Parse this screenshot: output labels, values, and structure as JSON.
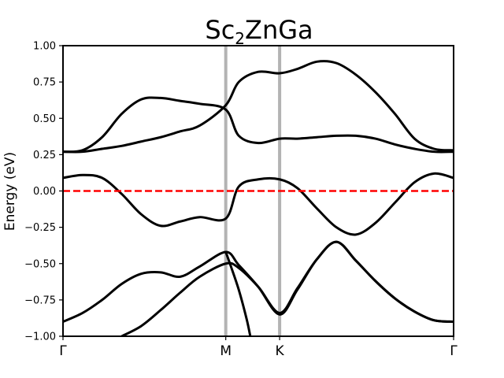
{
  "chart_data": {
    "type": "line",
    "title": {
      "main": "Sc",
      "subscript": "2",
      "rest": "ZnGa"
    },
    "ylabel": "Energy (eV)",
    "xlabel": "",
    "ylim": [
      -1.0,
      1.0
    ],
    "xlim": [
      0,
      1.0
    ],
    "yticks": [
      {
        "value": 1.0,
        "label": "1.00"
      },
      {
        "value": 0.75,
        "label": "0.75"
      },
      {
        "value": 0.5,
        "label": "0.50"
      },
      {
        "value": 0.25,
        "label": "0.25"
      },
      {
        "value": 0.0,
        "label": "0.00"
      },
      {
        "value": -0.25,
        "label": "−0.25"
      },
      {
        "value": -0.5,
        "label": "−0.50"
      },
      {
        "value": -0.75,
        "label": "−0.75"
      },
      {
        "value": -1.0,
        "label": "−1.00"
      }
    ],
    "kpoints": [
      {
        "label": "Γ",
        "x": 0.0
      },
      {
        "label": "M",
        "x": 0.4167
      },
      {
        "label": "K",
        "x": 0.5546
      },
      {
        "label": "Γ",
        "x": 1.0
      }
    ],
    "kpoint_line_color": "#b3b3b3",
    "fermi_level": 0.0,
    "fermi_color": "#ff0000",
    "band_color": "#000000",
    "grid": false,
    "series": [
      {
        "x": [
          0,
          0.05,
          0.1,
          0.15,
          0.2,
          0.25,
          0.3,
          0.35,
          0.4167,
          0.45,
          0.5,
          0.5546,
          0.6,
          0.65,
          0.7,
          0.75,
          0.8,
          0.85,
          0.9,
          0.95,
          1.0
        ],
        "values": [
          0.27,
          0.27,
          0.29,
          0.31,
          0.34,
          0.37,
          0.41,
          0.45,
          0.59,
          0.75,
          0.82,
          0.81,
          0.84,
          0.89,
          0.88,
          0.8,
          0.68,
          0.53,
          0.36,
          0.29,
          0.28
        ]
      },
      {
        "x": [
          0,
          0.05,
          0.1,
          0.15,
          0.2,
          0.25,
          0.3,
          0.35,
          0.4167,
          0.45,
          0.5,
          0.5546,
          0.6,
          0.65,
          0.7,
          0.75,
          0.8,
          0.85,
          0.9,
          0.95,
          1.0
        ],
        "values": [
          0.27,
          0.28,
          0.37,
          0.53,
          0.63,
          0.64,
          0.62,
          0.6,
          0.56,
          0.38,
          0.33,
          0.36,
          0.36,
          0.37,
          0.38,
          0.38,
          0.36,
          0.32,
          0.29,
          0.27,
          0.27
        ]
      },
      {
        "x": [
          0,
          0.05,
          0.1,
          0.15,
          0.2,
          0.25,
          0.3,
          0.35,
          0.4167,
          0.45,
          0.5,
          0.5546,
          0.6,
          0.65,
          0.7,
          0.75,
          0.8,
          0.85,
          0.9,
          0.95,
          1.0
        ],
        "values": [
          0.09,
          0.11,
          0.09,
          -0.02,
          -0.16,
          -0.24,
          -0.21,
          -0.18,
          -0.19,
          0.03,
          0.08,
          0.08,
          0.02,
          -0.12,
          -0.25,
          -0.3,
          -0.22,
          -0.08,
          0.06,
          0.12,
          0.09
        ]
      },
      {
        "x": [
          0,
          0.05,
          0.1,
          0.15,
          0.2,
          0.25,
          0.3,
          0.35,
          0.4167,
          0.45,
          0.5,
          0.5546,
          0.6,
          0.65,
          0.7,
          0.75,
          0.8,
          0.85,
          0.9,
          0.95,
          1.0
        ],
        "values": [
          -0.9,
          -0.84,
          -0.75,
          -0.64,
          -0.57,
          -0.56,
          -0.59,
          -0.52,
          -0.42,
          -0.51,
          -0.66,
          -0.85,
          -0.68,
          -0.47,
          -0.35,
          -0.48,
          -0.62,
          -0.74,
          -0.83,
          -0.89,
          -0.9
        ]
      },
      {
        "x": [
          0.15,
          0.2,
          0.25,
          0.3,
          0.35,
          0.4167,
          0.45,
          0.5,
          0.5546,
          0.6,
          0.65,
          0.7,
          0.75,
          0.8,
          0.85,
          0.9,
          0.95,
          1.0
        ],
        "values": [
          -1.0,
          -0.93,
          -0.82,
          -0.7,
          -0.59,
          -0.5,
          -0.53,
          -0.66,
          -0.84,
          -0.67,
          -0.47,
          -0.35,
          -0.48,
          -0.62,
          -0.74,
          -0.83,
          -0.89,
          -0.9
        ]
      },
      {
        "x": [
          0.4167,
          0.43,
          0.45,
          0.47,
          0.4795
        ],
        "values": [
          -0.42,
          -0.52,
          -0.68,
          -0.88,
          -1.0
        ]
      }
    ]
  }
}
